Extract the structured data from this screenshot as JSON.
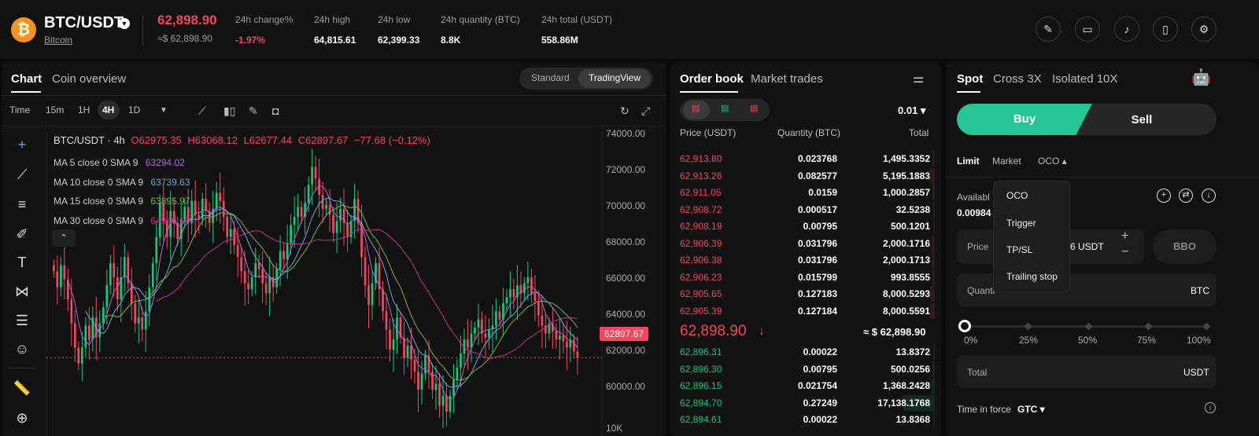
{
  "header": {
    "pair": "BTC/USDT",
    "coin_name": "Bitcoin",
    "price": "62,898.90",
    "price_usd": "≈$ 62,898.90",
    "stats": [
      {
        "label": "24h change%",
        "value": "-1.97%"
      },
      {
        "label": "24h high",
        "value": "64,815.61"
      },
      {
        "label": "24h low",
        "value": "62,399.33"
      },
      {
        "label": "24h quantity (BTC)",
        "value": "8.8K"
      },
      {
        "label": "24h total (USDT)",
        "value": "558.86M"
      }
    ]
  },
  "chart": {
    "tabs": [
      "Chart",
      "Coin overview"
    ],
    "modes": [
      "Standard",
      "TradingView"
    ],
    "time_label": "Time",
    "intervals": [
      "15m",
      "1H",
      "4H",
      "1D"
    ],
    "legend": {
      "title": "BTC/USDT · 4h",
      "o": "O62975.35",
      "h": "H63068.12",
      "l": "L62677.44",
      "c": "C62897.67",
      "chg": "−77.68 (−0.12%)"
    },
    "ma": [
      {
        "label": "MA 5 close 0 SMA 9",
        "value": "63294.02",
        "color": "#b069d6"
      },
      {
        "label": "MA 10 close 0 SMA 9",
        "value": "63739.63",
        "color": "#6fa8dc"
      },
      {
        "label": "MA 15 close 0 SMA 9",
        "value": "63895.97",
        "color": "#7cb342"
      },
      {
        "label": "MA 30 close 0 SMA 9",
        "value": "64946.60",
        "color": "#c2378c"
      }
    ],
    "axis": [
      "74000.00",
      "72000.00",
      "70000.00",
      "68000.00",
      "66000.00",
      "64000.00",
      "62000.00",
      "60000.00"
    ],
    "last_price": "62897.67",
    "volume_axis": "10K"
  },
  "chart_data": {
    "type": "candlestick",
    "ylim": [
      59000,
      74400
    ],
    "last": 62897.67,
    "closes": [
      67200,
      66400,
      67500,
      66800,
      65800,
      64600,
      63400,
      62600,
      63400,
      64500,
      63800,
      64900,
      63900,
      64600,
      65400,
      66500,
      67600,
      66900,
      65800,
      66900,
      67900,
      66600,
      65600,
      64600,
      64900,
      64300,
      65200,
      66400,
      67600,
      68900,
      70600,
      69700,
      68900,
      70200,
      69600,
      68800,
      69800,
      70400,
      69600,
      70700,
      70000,
      69800,
      70800,
      70200,
      69600,
      70300,
      71100,
      70700,
      69900,
      68900,
      69300,
      68500,
      67900,
      67200,
      66600,
      66300,
      66900,
      67600,
      67300,
      66600,
      66100,
      66900,
      66400,
      67300,
      68200,
      67800,
      68600,
      69500,
      69900,
      70400,
      69900,
      70600,
      71500,
      72400,
      71800,
      71000,
      70300,
      70500,
      70000,
      69100,
      69700,
      70300,
      69600,
      68900,
      69700,
      70800,
      69600,
      67900,
      66500,
      65500,
      66600,
      67600,
      66300,
      65200,
      64300,
      63300,
      63800,
      64900,
      63900,
      62900,
      63500,
      62800,
      62200,
      61300,
      62100,
      63000,
      62200,
      61300,
      61600,
      60500,
      61000,
      60200,
      61000,
      61800,
      62400,
      63100,
      63800,
      63400,
      64100,
      64400,
      64800,
      64100,
      63900,
      64300,
      64500,
      65200,
      64800,
      65600,
      65900,
      66300,
      65900,
      66500,
      66100,
      66600,
      66900,
      66100,
      65700,
      65000,
      64500,
      64100,
      64600,
      64200,
      63800,
      64000,
      63700,
      63400,
      63800,
      63200,
      62900
    ]
  },
  "orderbook": {
    "tabs": [
      "Order book",
      "Market trades"
    ],
    "precision": "0.01",
    "headers": [
      "Price (USDT)",
      "Quantity (BTC)",
      "Total"
    ],
    "asks": [
      [
        "62,913.80",
        "0.023768",
        "1,495.3352"
      ],
      [
        "62,913.26",
        "0.082577",
        "5,195.1883"
      ],
      [
        "62,911.05",
        "0.0159",
        "1,000.2857"
      ],
      [
        "62,908.72",
        "0.000517",
        "32.5238"
      ],
      [
        "62,908.19",
        "0.00795",
        "500.1201"
      ],
      [
        "62,906.39",
        "0.031796",
        "2,000.1716"
      ],
      [
        "62,906.38",
        "0.031796",
        "2,000.1713"
      ],
      [
        "62,906.23",
        "0.015799",
        "993.8555"
      ],
      [
        "62,905.65",
        "0.127183",
        "8,000.5293"
      ],
      [
        "62,905.39",
        "0.127184",
        "8,000.5591"
      ]
    ],
    "mid": "62,898.90",
    "mid_arrow": "↓",
    "mid_usd": "≈ $ 62,898.90",
    "bids": [
      [
        "62,896.31",
        "0.00022",
        "13.8372"
      ],
      [
        "62,896.30",
        "0.00795",
        "500.0256"
      ],
      [
        "62,896.15",
        "0.021754",
        "1,368.2428"
      ],
      [
        "62,894.70",
        "0.27249",
        "17,138.1768"
      ],
      [
        "62,894.61",
        "0.00022",
        "13.8368"
      ]
    ]
  },
  "trade": {
    "tabs": [
      "Spot",
      "Cross 3X",
      "Isolated 10X"
    ],
    "buy": "Buy",
    "sell": "Sell",
    "types": [
      "Limit",
      "Market",
      "OCO ▴"
    ],
    "oco_menu": [
      "OCO",
      "Trigger",
      "TP/SL",
      "Trailing stop"
    ],
    "available": "Availabl",
    "available_val": "0.00984",
    "price_label": "Price",
    "price_val": "6 USDT",
    "bbo": "BBO",
    "qty_label": "Quanti",
    "qty_unit": "BTC",
    "pcts": [
      "0%",
      "25%",
      "50%",
      "75%",
      "100%"
    ],
    "total_label": "Total",
    "total_unit": "USDT",
    "tif": "Time in force",
    "tif_val": "GTC ▾"
  }
}
